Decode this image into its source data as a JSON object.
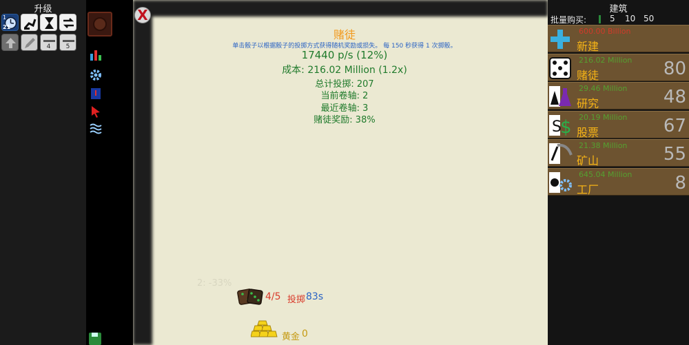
{
  "left_panel": {
    "title": "升级",
    "row1_badges": {
      "clock": "1",
      "clock_sub": "21"
    },
    "row2_badges": {
      "btn3": "4",
      "btn4": "5"
    }
  },
  "dialog": {
    "title": "赌徒",
    "description_prefix": "单击骰子以根据骰子的投掷方式获得随机奖励或损失。 每 ",
    "description_seconds": "150",
    "description_mid": " 秒获得 ",
    "description_count": "1",
    "description_suffix": " 次掷骰。",
    "rate": "17440 p/s (12%)",
    "cost": "成本: 216.02 Million (1.2x)",
    "total_rolls": "总计投掷: 207",
    "current_scroll": "当前卷轴: 2",
    "recent_scroll": "最近卷轴: 3",
    "gambler_bonus": "赌徒奖励: 38%",
    "faded_hint": "2: -33%",
    "dice_count": "4/5",
    "roll_label": "投掷",
    "roll_timer": "83s",
    "gold_label": "黄金",
    "gold_value": "0",
    "close_label": "X"
  },
  "right_panel": {
    "title": "建筑",
    "bulk_label": "批量购买:",
    "bulk_options": [
      "1",
      "5",
      "10",
      "50"
    ],
    "buildings": [
      {
        "name": "新建",
        "price": "600.00 Billion",
        "count": "",
        "price_color": "#d13a2a",
        "icon": "plus-icon"
      },
      {
        "name": "赌徒",
        "price": "216.02 Million",
        "count": "80",
        "price_color": "#55a030",
        "icon": "dice-icon"
      },
      {
        "name": "研究",
        "price": "29.46 Million",
        "count": "48",
        "price_color": "#55a030",
        "icon": "flask-icon"
      },
      {
        "name": "股票",
        "price": "20.19 Million",
        "count": "67",
        "price_color": "#55a030",
        "icon": "dollar-icon"
      },
      {
        "name": "矿山",
        "price": "21.38 Million",
        "count": "55",
        "price_color": "#55a030",
        "icon": "pickaxe-icon"
      },
      {
        "name": "工厂",
        "price": "645.04 Million",
        "count": "8",
        "price_color": "#55a030",
        "icon": "gear-icon"
      }
    ]
  },
  "colors": {
    "accent_orange": "#f29a1e",
    "green_text": "#1f7a2b",
    "blue_text": "#2a63c4",
    "wood": "#6d5330"
  }
}
